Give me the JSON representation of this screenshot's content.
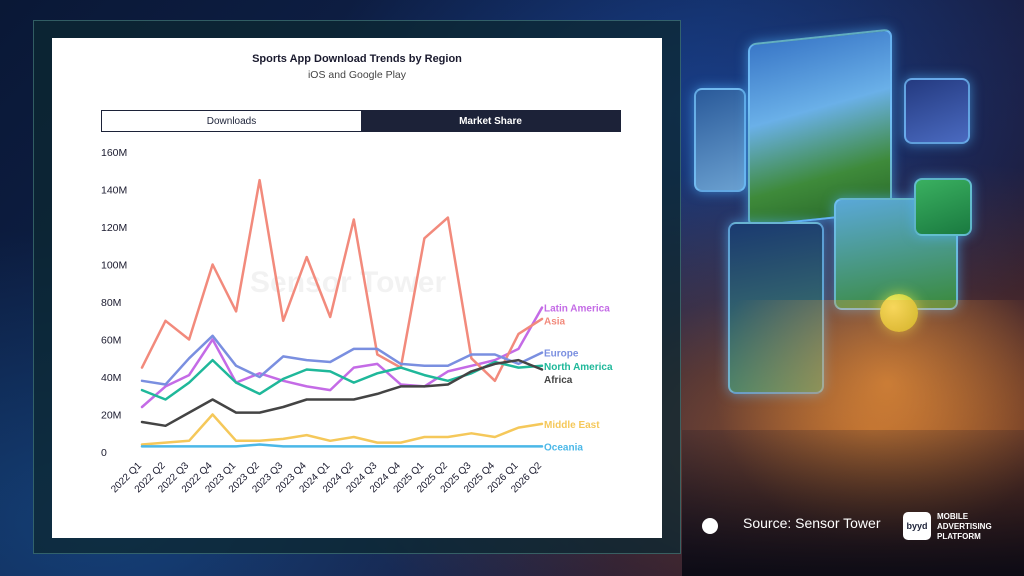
{
  "header": {
    "title": "Sports App Download Trends by Region",
    "subtitle": "iOS and Google Play"
  },
  "tabs": [
    {
      "label": "Downloads",
      "active": true
    },
    {
      "label": "Market Share",
      "active": false
    }
  ],
  "watermark": "Sensor Tower",
  "footer": {
    "source": "Source: Sensor Tower",
    "logo_mark": "byyd",
    "logo_text": [
      "MOBILE",
      "ADVERTISING",
      "PLATFORM"
    ]
  },
  "chart_data": {
    "type": "line",
    "title": "Sports App Download Trends by Region",
    "subtitle": "iOS and Google Play",
    "x": [
      "2022 Q1",
      "2022 Q2",
      "2022 Q3",
      "2022 Q4",
      "2023 Q1",
      "2023 Q2",
      "2023 Q3",
      "2023 Q4",
      "2024 Q1",
      "2024 Q2",
      "2024 Q3",
      "2024 Q4",
      "2025 Q1",
      "2025 Q2",
      "2025 Q3",
      "2025 Q4",
      "2026 Q1",
      "2026 Q2"
    ],
    "y_ticks": [
      "0",
      "20M",
      "40M",
      "60M",
      "80M",
      "100M",
      "120M",
      "140M",
      "160M"
    ],
    "ylim": [
      0,
      160
    ],
    "unit": "M",
    "grid": false,
    "legend_placement": "right-end-labels",
    "series": [
      {
        "name": "Latin America",
        "color": "#c46be6",
        "values": [
          24,
          35,
          41,
          60,
          37,
          42,
          38,
          35,
          33,
          45,
          47,
          36,
          35,
          43,
          46,
          49,
          55,
          77
        ]
      },
      {
        "name": "Asia",
        "color": "#f28a7c",
        "values": [
          45,
          70,
          60,
          100,
          75,
          145,
          70,
          104,
          72,
          124,
          52,
          45,
          114,
          125,
          50,
          38,
          63,
          71
        ]
      },
      {
        "name": "Europe",
        "color": "#7a8fe0",
        "values": [
          38,
          36,
          50,
          62,
          46,
          40,
          51,
          49,
          48,
          55,
          55,
          47,
          46,
          46,
          52,
          52,
          47,
          53
        ]
      },
      {
        "name": "North America",
        "color": "#1fb89a",
        "values": [
          33,
          28,
          37,
          49,
          37,
          31,
          39,
          44,
          43,
          37,
          42,
          45,
          41,
          38,
          42,
          48,
          45,
          46
        ]
      },
      {
        "name": "Africa",
        "color": "#444444",
        "values": [
          16,
          14,
          21,
          28,
          21,
          21,
          24,
          28,
          28,
          28,
          31,
          35,
          35,
          36,
          43,
          47,
          49,
          44
        ]
      },
      {
        "name": "Middle East",
        "color": "#f5c85a",
        "values": [
          4,
          5,
          6,
          20,
          6,
          6,
          7,
          9,
          6,
          8,
          5,
          5,
          8,
          8,
          10,
          8,
          13,
          15
        ]
      },
      {
        "name": "Oceania",
        "color": "#4bb8e8",
        "values": [
          3,
          3,
          3,
          3,
          3,
          4,
          3,
          3,
          3,
          3,
          3,
          3,
          3,
          3,
          3,
          3,
          3,
          3
        ]
      }
    ]
  }
}
